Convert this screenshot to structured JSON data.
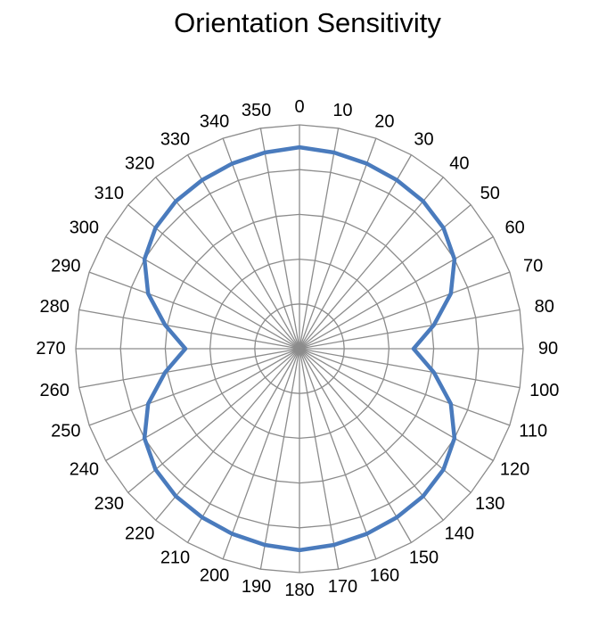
{
  "chart_data": {
    "type": "radar",
    "title": "Orientation Sensitivity",
    "categories": [
      "0",
      "10",
      "20",
      "30",
      "40",
      "50",
      "60",
      "70",
      "80",
      "90",
      "100",
      "110",
      "120",
      "130",
      "140",
      "150",
      "160",
      "170",
      "180",
      "190",
      "200",
      "210",
      "220",
      "230",
      "240",
      "250",
      "260",
      "270",
      "280",
      "290",
      "300",
      "310",
      "320",
      "330",
      "340",
      "350"
    ],
    "series": [
      {
        "values": [
          0.9,
          0.89,
          0.88,
          0.87,
          0.86,
          0.84,
          0.8,
          0.72,
          0.61,
          0.51,
          0.61,
          0.72,
          0.8,
          0.84,
          0.86,
          0.87,
          0.88,
          0.89,
          0.9,
          0.89,
          0.88,
          0.87,
          0.86,
          0.84,
          0.8,
          0.72,
          0.61,
          0.51,
          0.61,
          0.72,
          0.8,
          0.84,
          0.86,
          0.87,
          0.88,
          0.89
        ]
      }
    ],
    "rlim": [
      0,
      1
    ],
    "rings": 5,
    "grid": true,
    "legend": "none",
    "line_color": "#4a7bbd",
    "grid_color": "#8c8c8c"
  }
}
